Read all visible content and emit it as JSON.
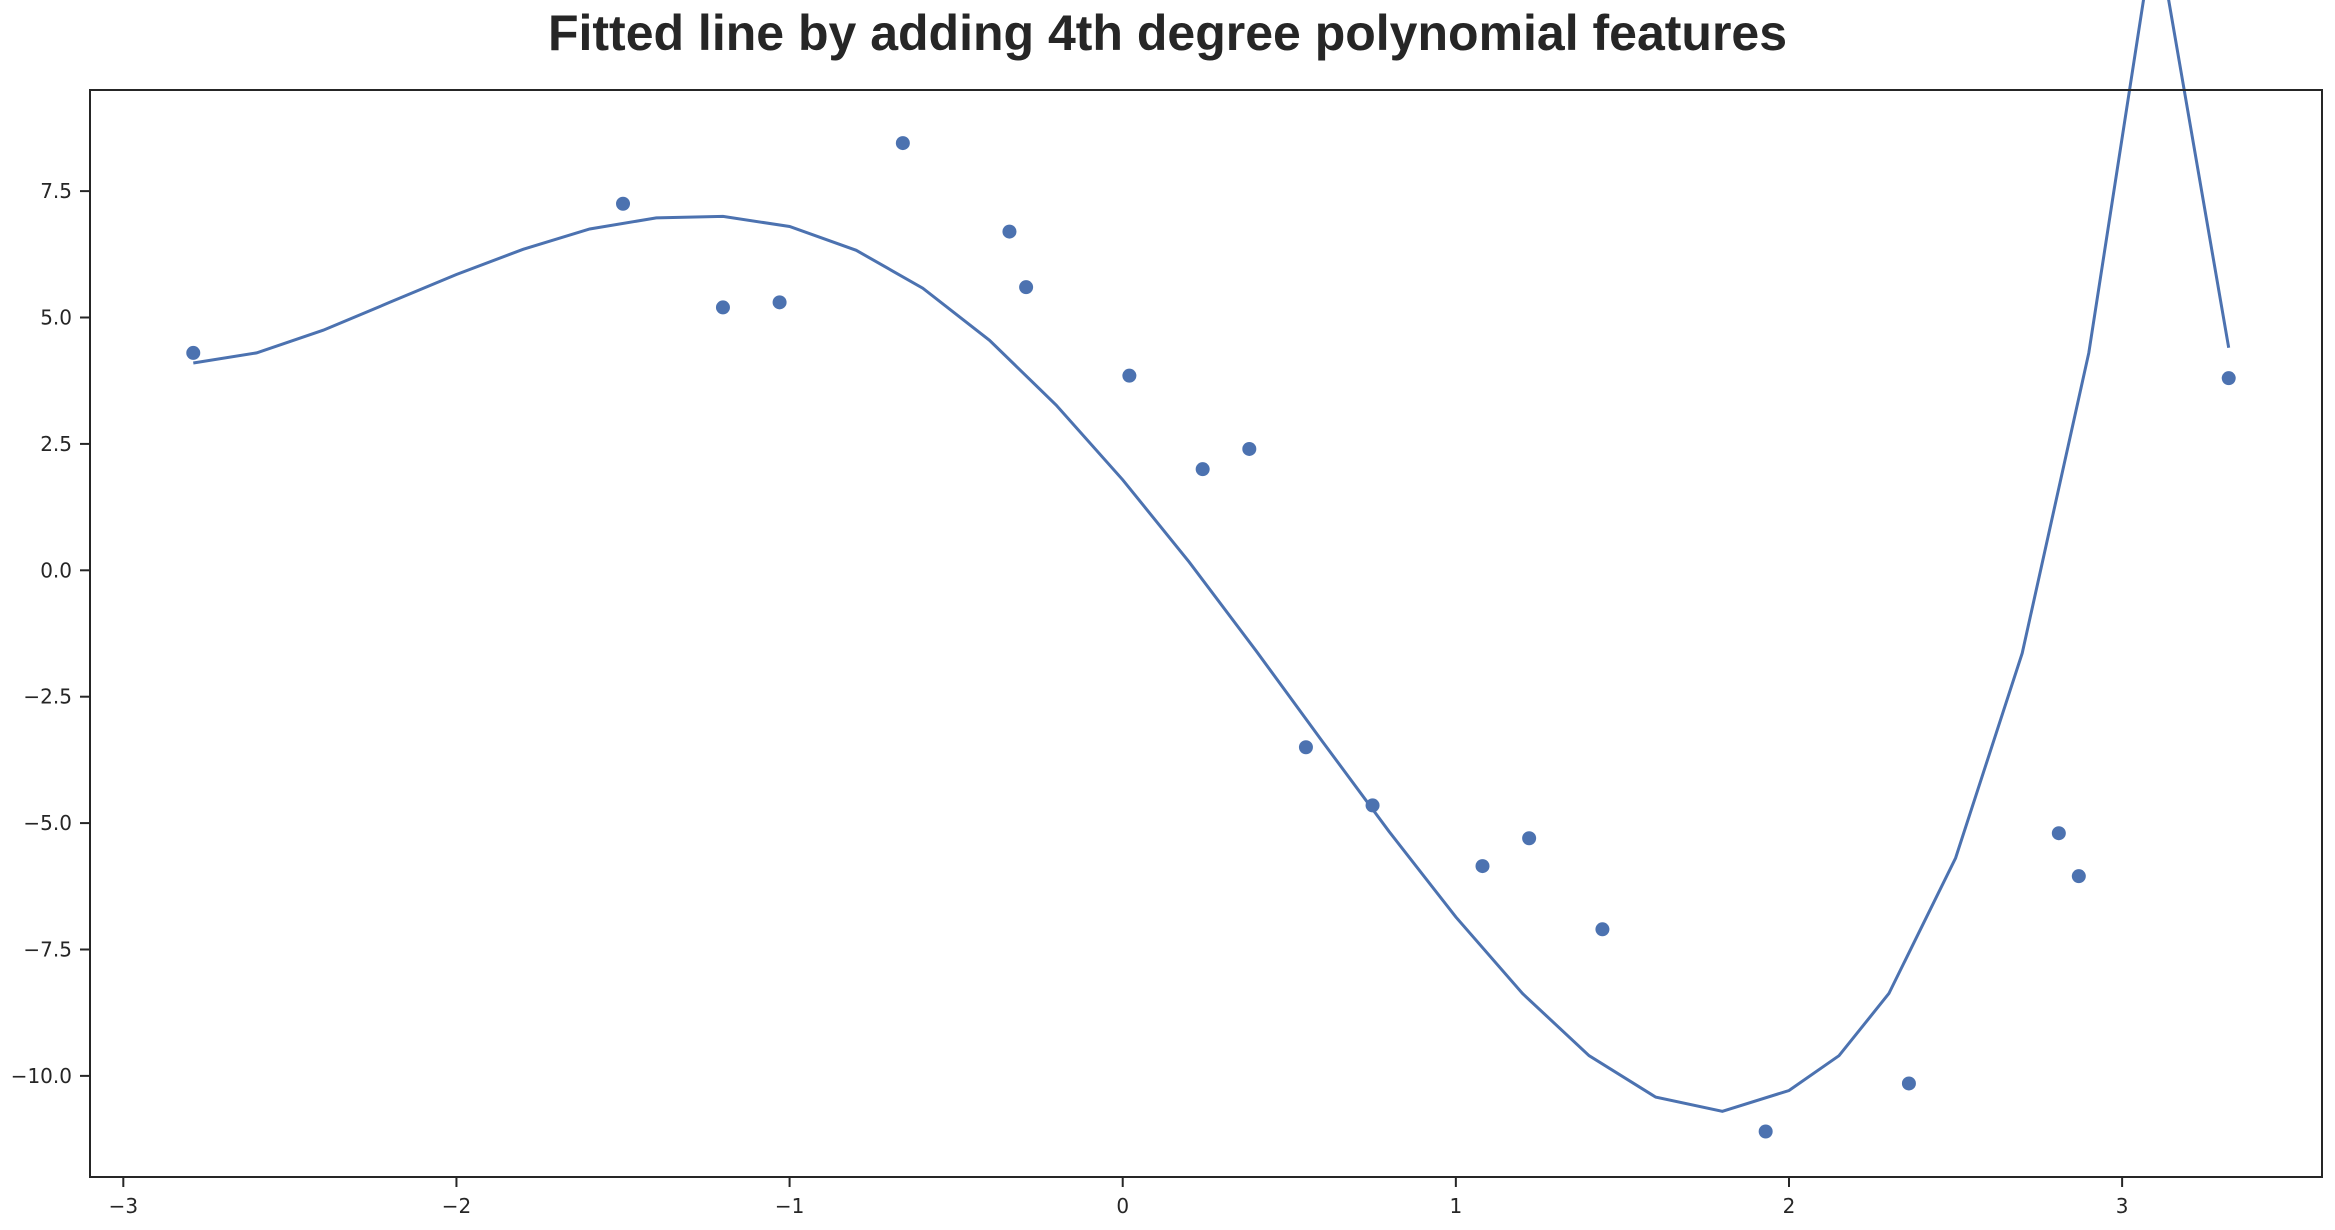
{
  "chart_data": {
    "type": "scatter",
    "title": "Fitted line by adding 4th degree polynomial features",
    "xlabel": "",
    "ylabel": "",
    "xlim": [
      -3.1,
      3.6
    ],
    "ylim": [
      -12.0,
      9.5
    ],
    "xticks": [
      -3,
      -2,
      -1,
      0,
      1,
      2,
      3
    ],
    "xtick_labels": [
      "−3",
      "−2",
      "−1",
      "0",
      "1",
      "2",
      "3"
    ],
    "yticks": [
      7.5,
      5.0,
      2.5,
      0.0,
      -2.5,
      -5.0,
      -7.5,
      -10.0
    ],
    "ytick_labels": [
      "7.5",
      "5.0",
      "2.5",
      "0.0",
      "−2.5",
      "−5.0",
      "−7.5",
      "−10.0"
    ],
    "grid": false,
    "colors": {
      "series": "#4c72b0",
      "axes": "#262626"
    },
    "series": [
      {
        "type": "scatter",
        "x": [
          -2.79,
          -1.5,
          -1.2,
          -1.03,
          -0.66,
          -0.34,
          -0.29,
          0.02,
          0.24,
          0.38,
          0.55,
          0.75,
          1.08,
          1.22,
          1.44,
          1.93,
          2.36,
          2.81,
          2.87,
          3.32
        ],
        "y": [
          4.3,
          7.25,
          5.2,
          5.3,
          8.45,
          6.7,
          5.6,
          3.85,
          2.0,
          2.4,
          -3.5,
          -4.65,
          -5.85,
          -5.3,
          -7.1,
          -11.1,
          -10.15,
          -5.2,
          -6.05,
          3.8
        ]
      },
      {
        "type": "line",
        "x": [
          -2.79,
          -2.6,
          -2.4,
          -2.2,
          -2.0,
          -1.8,
          -1.6,
          -1.4,
          -1.2,
          -1.0,
          -0.8,
          -0.6,
          -0.4,
          -0.2,
          0.0,
          0.2,
          0.4,
          0.6,
          0.8,
          1.0,
          1.2,
          1.4,
          1.6,
          1.8,
          2.0,
          2.15,
          2.3,
          2.5,
          2.7,
          2.9,
          3.1,
          3.32
        ],
        "y": [
          4.1,
          4.3,
          4.75,
          5.3,
          5.85,
          6.35,
          6.75,
          6.97,
          7.0,
          6.8,
          6.33,
          5.58,
          4.55,
          3.27,
          1.79,
          0.16,
          -1.59,
          -3.39,
          -5.17,
          -6.86,
          -8.37,
          -9.6,
          -10.42,
          -10.7,
          -10.29,
          -9.6,
          -8.37,
          -5.69,
          -1.64,
          4.3,
          12.8,
          4.4
        ]
      }
    ]
  }
}
